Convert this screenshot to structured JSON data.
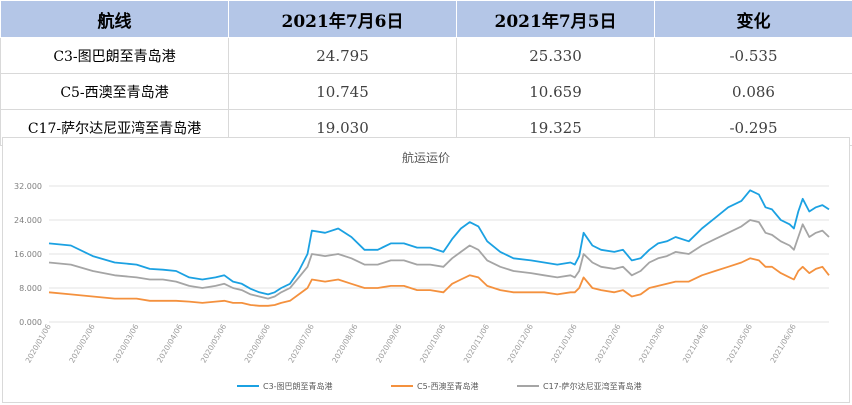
{
  "table": {
    "headers": [
      "航线",
      "2021年7月6日",
      "2021年7月5日",
      "变化"
    ],
    "rows": [
      {
        "route": "C3-图巴朗至青岛港",
        "d1": "24.795",
        "d2": "25.330",
        "change": "-0.535",
        "dir": "neg"
      },
      {
        "route": "C5-西澳至青岛港",
        "d1": "10.745",
        "d2": "10.659",
        "change": "0.086",
        "dir": "pos"
      },
      {
        "route": "C17-萨尔达尼亚湾至青岛港",
        "d1": "19.030",
        "d2": "19.325",
        "change": "-0.295",
        "dir": "neg"
      }
    ]
  },
  "chart_data": {
    "type": "line",
    "title": "航运运价",
    "ylim": [
      0,
      32
    ],
    "yticks": [
      "0.000",
      "8.000",
      "16.000",
      "24.000",
      "32.000"
    ],
    "xticks": [
      "2020/01/06",
      "2020/02/06",
      "2020/03/06",
      "2020/04/06",
      "2020/05/06",
      "2020/06/06",
      "2020/07/06",
      "2020/08/06",
      "2020/09/06",
      "2020/10/06",
      "2020/11/06",
      "2020/12/06",
      "2021/01/06",
      "2021/02/06",
      "2021/03/06",
      "2021/04/06",
      "2021/05/06",
      "2021/06/06"
    ],
    "legend_position": "bottom",
    "series": [
      {
        "name": "C3-图巴朗至青岛港",
        "color": "#1ba1e2",
        "x": [
          0,
          0.5,
          1,
          1.5,
          2,
          2.3,
          2.6,
          2.9,
          3.2,
          3.5,
          3.8,
          4,
          4.2,
          4.4,
          4.6,
          4.8,
          5,
          5.15,
          5.3,
          5.5,
          5.7,
          5.9,
          6,
          6.3,
          6.6,
          6.9,
          7.2,
          7.5,
          7.8,
          8.1,
          8.4,
          8.7,
          9,
          9.1,
          9.2,
          9.4,
          9.6,
          9.8,
          10,
          10.3,
          10.6,
          11,
          11.3,
          11.6,
          11.9,
          12,
          12.1,
          12.2,
          12.4,
          12.6,
          12.9,
          13.1,
          13.3,
          13.5,
          13.7,
          13.9,
          14.1,
          14.3,
          14.6,
          14.9,
          15.2,
          15.5,
          15.8,
          16,
          16.2,
          16.35,
          16.5,
          16.7,
          16.9,
          17,
          17.1,
          17.2,
          17.35,
          17.5,
          17.65,
          17.8
        ],
        "values": [
          18.5,
          18,
          15.5,
          14,
          13.5,
          12.5,
          12.3,
          12,
          10.5,
          10,
          10.5,
          11,
          9.5,
          9,
          7.8,
          7,
          6.5,
          7,
          8,
          9,
          12,
          16,
          21.5,
          21,
          22,
          20,
          17,
          17,
          18.5,
          18.5,
          17.5,
          17.5,
          16.5,
          18,
          19.5,
          22,
          23.5,
          22.5,
          19,
          16.5,
          15,
          14.5,
          14,
          13.5,
          14,
          13.5,
          15.5,
          21,
          18,
          17,
          16.5,
          17,
          14.5,
          15,
          17,
          18.5,
          19,
          20,
          19,
          22,
          24.5,
          27,
          28.5,
          31,
          30,
          27,
          26.5,
          24,
          23,
          22,
          26,
          29,
          26,
          27,
          27.5,
          26.5
        ]
      },
      {
        "name": "C5-西澳至青岛港",
        "color": "#f4913e",
        "x": [
          0,
          0.5,
          1,
          1.5,
          2,
          2.3,
          2.6,
          2.9,
          3.2,
          3.5,
          3.8,
          4,
          4.2,
          4.4,
          4.6,
          4.8,
          5,
          5.15,
          5.3,
          5.5,
          5.7,
          5.9,
          6,
          6.3,
          6.6,
          6.9,
          7.2,
          7.5,
          7.8,
          8.1,
          8.4,
          8.7,
          9,
          9.1,
          9.2,
          9.4,
          9.6,
          9.8,
          10,
          10.3,
          10.6,
          11,
          11.3,
          11.6,
          11.9,
          12,
          12.1,
          12.2,
          12.4,
          12.6,
          12.9,
          13.1,
          13.3,
          13.5,
          13.7,
          13.9,
          14.1,
          14.3,
          14.6,
          14.9,
          15.2,
          15.5,
          15.8,
          16,
          16.2,
          16.35,
          16.5,
          16.7,
          16.9,
          17,
          17.1,
          17.2,
          17.35,
          17.5,
          17.65,
          17.8
        ],
        "values": [
          7,
          6.5,
          6,
          5.5,
          5.5,
          5,
          5,
          5,
          4.8,
          4.5,
          4.8,
          5,
          4.5,
          4.5,
          4,
          3.8,
          3.8,
          4,
          4.5,
          5,
          6.5,
          8,
          10,
          9.5,
          10,
          9,
          8,
          8,
          8.5,
          8.5,
          7.5,
          7.5,
          7,
          8,
          9,
          10,
          11,
          10.5,
          8.5,
          7.5,
          7,
          7,
          7,
          6.5,
          7,
          7,
          8,
          10.5,
          8,
          7.5,
          7,
          7.5,
          6,
          6.5,
          8,
          8.5,
          9,
          9.5,
          9.5,
          11,
          12,
          13,
          14,
          15,
          14.5,
          13,
          13,
          11.5,
          10.5,
          10,
          12,
          13,
          11.5,
          12.5,
          13,
          11
        ]
      },
      {
        "name": "C17-萨尔达尼亚湾至青岛港",
        "color": "#a5a5a5",
        "x": [
          0,
          0.5,
          1,
          1.5,
          2,
          2.3,
          2.6,
          2.9,
          3.2,
          3.5,
          3.8,
          4,
          4.2,
          4.4,
          4.6,
          4.8,
          5,
          5.15,
          5.3,
          5.5,
          5.7,
          5.9,
          6,
          6.3,
          6.6,
          6.9,
          7.2,
          7.5,
          7.8,
          8.1,
          8.4,
          8.7,
          9,
          9.1,
          9.2,
          9.4,
          9.6,
          9.8,
          10,
          10.3,
          10.6,
          11,
          11.3,
          11.6,
          11.9,
          12,
          12.1,
          12.2,
          12.4,
          12.6,
          12.9,
          13.1,
          13.3,
          13.5,
          13.7,
          13.9,
          14.1,
          14.3,
          14.6,
          14.9,
          15.2,
          15.5,
          15.8,
          16,
          16.2,
          16.35,
          16.5,
          16.7,
          16.9,
          17,
          17.1,
          17.2,
          17.35,
          17.5,
          17.65,
          17.8
        ],
        "values": [
          14,
          13.5,
          12,
          11,
          10.5,
          10,
          10,
          9.5,
          8.5,
          8,
          8.5,
          9,
          8,
          7.5,
          6.5,
          6,
          5.5,
          6,
          7,
          8,
          10.5,
          13,
          16,
          15.5,
          16,
          15,
          13.5,
          13.5,
          14.5,
          14.5,
          13.5,
          13.5,
          13,
          14,
          15,
          16.5,
          18,
          17,
          14.5,
          13,
          12,
          11.5,
          11,
          10.5,
          11,
          10.5,
          12,
          16,
          14,
          13,
          12.5,
          13,
          11,
          12,
          14,
          15,
          15.5,
          16.5,
          16,
          18,
          19.5,
          21,
          22.5,
          24,
          23.5,
          21,
          20.5,
          19,
          18,
          17,
          20,
          23,
          20,
          21,
          21.5,
          20
        ]
      }
    ]
  }
}
